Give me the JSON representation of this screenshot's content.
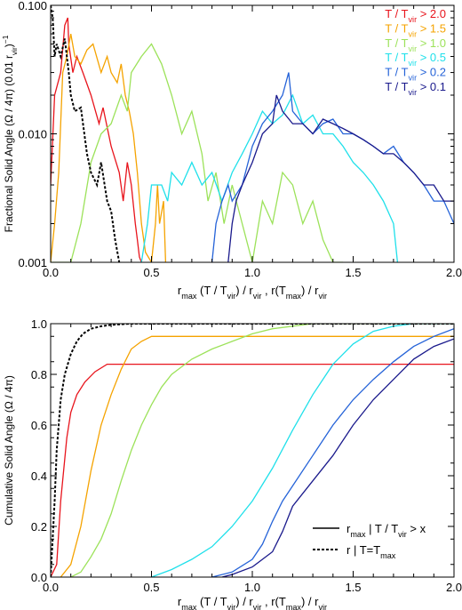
{
  "chart_data": [
    {
      "type": "line",
      "title": "",
      "ylabel_main": "Fractional Solid Angle (Ω / 4π) (0.01 r",
      "ylabel_sub": "vir",
      "ylabel_tail": ")",
      "ylabel_sup": "−1",
      "xlim": [
        0.0,
        2.0
      ],
      "ylim": [
        0.001,
        0.1
      ],
      "yscale": "log",
      "xticks": [
        "0.0",
        "0.5",
        "1.0",
        "1.5",
        "2.0"
      ],
      "yticks": [
        "0.001",
        "0.010",
        "0.100"
      ],
      "xlabel": {
        "a": "r",
        "a_sub": "max",
        "b": "(T / T",
        "b_sub": "vir",
        "c": ") / r",
        "c_sub": "vir",
        "d": ",  r(T",
        "d_sub": "max",
        "e": ") / r",
        "e_sub": "vir"
      },
      "legend_position": "top-right",
      "series": [
        {
          "name": "T / T",
          "sub": "vir",
          "thr": " > 2.0",
          "color": "#e8141c",
          "dash": "",
          "x": [
            0.0,
            0.02,
            0.05,
            0.07,
            0.085,
            0.09,
            0.11,
            0.13,
            0.16,
            0.2,
            0.24,
            0.26,
            0.3,
            0.34,
            0.36,
            0.38,
            0.4,
            0.42,
            0.43,
            0.44,
            0.45
          ],
          "y": [
            0.004,
            0.02,
            0.03,
            0.07,
            0.08,
            0.05,
            0.03,
            0.04,
            0.03,
            0.02,
            0.012,
            0.016,
            0.008,
            0.005,
            0.003,
            0.006,
            0.004,
            0.002,
            0.0015,
            0.0011,
            0.001
          ]
        },
        {
          "name": "T / T",
          "sub": "vir",
          "thr": " > 1.5",
          "color": "#f5a300",
          "dash": "",
          "x": [
            0.0,
            0.02,
            0.04,
            0.06,
            0.08,
            0.1,
            0.12,
            0.15,
            0.18,
            0.21,
            0.25,
            0.28,
            0.3,
            0.33,
            0.35,
            0.37,
            0.39,
            0.41,
            0.43,
            0.45,
            0.47,
            0.5,
            0.52,
            0.53,
            0.54,
            0.56,
            0.57
          ],
          "y": [
            0.001,
            0.002,
            0.005,
            0.03,
            0.04,
            0.06,
            0.04,
            0.035,
            0.045,
            0.05,
            0.03,
            0.04,
            0.03,
            0.025,
            0.035,
            0.02,
            0.015,
            0.01,
            0.005,
            0.002,
            0.0012,
            0.001,
            0.002,
            0.004,
            0.002,
            0.003,
            0.001
          ]
        },
        {
          "name": "T / T",
          "sub": "vir",
          "thr": " > 1.0",
          "color": "#9ce25a",
          "dash": "",
          "x": [
            0.0,
            0.1,
            0.15,
            0.2,
            0.25,
            0.3,
            0.35,
            0.38,
            0.4,
            0.45,
            0.5,
            0.55,
            0.6,
            0.65,
            0.7,
            0.75,
            0.78,
            0.82,
            0.86,
            0.9,
            0.95,
            1.0,
            1.05,
            1.1,
            1.15,
            1.2,
            1.25,
            1.3,
            1.35,
            1.4,
            1.45
          ],
          "y": [
            0.001,
            0.001,
            0.002,
            0.006,
            0.01,
            0.012,
            0.02,
            0.015,
            0.03,
            0.04,
            0.05,
            0.035,
            0.02,
            0.01,
            0.015,
            0.007,
            0.003,
            0.005,
            0.002,
            0.004,
            0.002,
            0.001,
            0.003,
            0.002,
            0.005,
            0.004,
            0.002,
            0.003,
            0.0015,
            0.001,
            0.001
          ]
        },
        {
          "name": "T / T",
          "sub": "vir",
          "thr": " > 0.5",
          "color": "#1fe0ea",
          "dash": "",
          "x": [
            0.45,
            0.48,
            0.5,
            0.55,
            0.58,
            0.6,
            0.65,
            0.7,
            0.75,
            0.8,
            0.85,
            0.9,
            0.95,
            1.0,
            1.05,
            1.1,
            1.15,
            1.2,
            1.25,
            1.3,
            1.35,
            1.4,
            1.45,
            1.5,
            1.55,
            1.6,
            1.65,
            1.7,
            1.72
          ],
          "y": [
            0.001,
            0.002,
            0.004,
            0.004,
            0.003,
            0.005,
            0.004,
            0.006,
            0.004,
            0.005,
            0.003,
            0.005,
            0.007,
            0.01,
            0.015,
            0.012,
            0.014,
            0.02,
            0.012,
            0.014,
            0.01,
            0.01,
            0.008,
            0.006,
            0.005,
            0.004,
            0.003,
            0.002,
            0.001
          ]
        },
        {
          "name": "T / T",
          "sub": "vir",
          "thr": " > 0.2",
          "color": "#2563d8",
          "dash": "",
          "x": [
            0.8,
            0.82,
            0.85,
            0.88,
            0.9,
            0.95,
            1.0,
            1.05,
            1.1,
            1.15,
            1.18,
            1.2,
            1.25,
            1.3,
            1.35,
            1.4,
            1.45,
            1.5,
            1.55,
            1.6,
            1.65,
            1.7,
            1.75,
            1.8,
            1.85,
            1.9,
            1.95,
            2.0
          ],
          "y": [
            0.001,
            0.002,
            0.003,
            0.004,
            0.003,
            0.004,
            0.008,
            0.012,
            0.015,
            0.02,
            0.03,
            0.015,
            0.012,
            0.01,
            0.012,
            0.013,
            0.01,
            0.01,
            0.009,
            0.008,
            0.007,
            0.008,
            0.006,
            0.005,
            0.004,
            0.003,
            0.003,
            0.002
          ]
        },
        {
          "name": "T / T",
          "sub": "vir",
          "thr": " > 0.1",
          "color": "#1a1a8c",
          "dash": "",
          "x": [
            0.88,
            0.9,
            0.92,
            0.95,
            1.0,
            1.05,
            1.1,
            1.12,
            1.15,
            1.2,
            1.25,
            1.3,
            1.35,
            1.4,
            1.45,
            1.5,
            1.55,
            1.6,
            1.65,
            1.7,
            1.75,
            1.8,
            1.85,
            1.9,
            1.95,
            2.0
          ],
          "y": [
            0.001,
            0.002,
            0.003,
            0.004,
            0.006,
            0.01,
            0.012,
            0.02,
            0.015,
            0.012,
            0.012,
            0.01,
            0.013,
            0.012,
            0.011,
            0.01,
            0.009,
            0.008,
            0.007,
            0.007,
            0.006,
            0.005,
            0.004,
            0.004,
            0.003,
            0.003
          ]
        },
        {
          "name": "",
          "sub": "",
          "thr": "",
          "color": "#000000",
          "dash": "3,2",
          "x": [
            0.0,
            0.01,
            0.02,
            0.03,
            0.05,
            0.07,
            0.09,
            0.1,
            0.12,
            0.15,
            0.18,
            0.2,
            0.23,
            0.25,
            0.28,
            0.3,
            0.32,
            0.34
          ],
          "y": [
            0.1,
            0.08,
            0.04,
            0.05,
            0.04,
            0.055,
            0.03,
            0.02,
            0.015,
            0.016,
            0.007,
            0.005,
            0.004,
            0.006,
            0.003,
            0.0025,
            0.0015,
            0.001
          ]
        }
      ]
    },
    {
      "type": "line",
      "title": "",
      "ylabel": "Cumulative Solid Angle (Ω / 4π)",
      "xlim": [
        0.0,
        2.0
      ],
      "ylim": [
        0.0,
        1.0
      ],
      "xticks": [
        "0.0",
        "0.5",
        "1.0",
        "1.5",
        "2.0"
      ],
      "yticks": [
        "0.0",
        "0.2",
        "0.4",
        "0.6",
        "0.8",
        "1.0"
      ],
      "xlabel": {
        "a": "r",
        "a_sub": "max",
        "b": "(T / T",
        "b_sub": "vir",
        "c": ") / r",
        "c_sub": "vir",
        "d": ",  r(T",
        "d_sub": "max",
        "e": ") / r",
        "e_sub": "vir"
      },
      "legend_position": "bottom-right",
      "legend": [
        {
          "pre": "r",
          "sub": "max",
          "post": " | T / T",
          "sub2": "vir",
          "post2": " > x",
          "dash": ""
        },
        {
          "pre": "r | T=T",
          "sub": "max",
          "post": "",
          "sub2": "",
          "post2": "",
          "dash": "3,2"
        }
      ],
      "series": [
        {
          "color": "#e8141c",
          "dash": "",
          "x": [
            0.0,
            0.03,
            0.05,
            0.08,
            0.1,
            0.13,
            0.17,
            0.22,
            0.28,
            0.32,
            2.0
          ],
          "y": [
            0.0,
            0.05,
            0.3,
            0.55,
            0.65,
            0.72,
            0.77,
            0.81,
            0.84,
            0.84,
            0.84
          ]
        },
        {
          "color": "#f5a300",
          "dash": "",
          "x": [
            0.05,
            0.1,
            0.15,
            0.2,
            0.25,
            0.3,
            0.35,
            0.4,
            0.45,
            0.5,
            0.55,
            2.0
          ],
          "y": [
            0.0,
            0.05,
            0.2,
            0.42,
            0.6,
            0.72,
            0.82,
            0.9,
            0.93,
            0.95,
            0.95,
            0.95
          ]
        },
        {
          "color": "#9ce25a",
          "dash": "",
          "x": [
            0.1,
            0.15,
            0.2,
            0.25,
            0.3,
            0.35,
            0.4,
            0.45,
            0.5,
            0.55,
            0.6,
            0.7,
            0.8,
            0.9,
            1.0,
            1.1,
            1.3,
            1.5,
            2.0
          ],
          "y": [
            0.0,
            0.02,
            0.08,
            0.15,
            0.25,
            0.38,
            0.5,
            0.6,
            0.68,
            0.75,
            0.8,
            0.86,
            0.9,
            0.93,
            0.96,
            0.98,
            1.0,
            1.0,
            1.0
          ]
        },
        {
          "color": "#1fe0ea",
          "dash": "",
          "x": [
            0.5,
            0.6,
            0.7,
            0.8,
            0.9,
            1.0,
            1.1,
            1.2,
            1.3,
            1.4,
            1.5,
            1.6,
            1.7,
            1.8,
            2.0
          ],
          "y": [
            0.0,
            0.03,
            0.07,
            0.12,
            0.2,
            0.3,
            0.43,
            0.58,
            0.72,
            0.84,
            0.92,
            0.97,
            0.99,
            1.0,
            1.0
          ]
        },
        {
          "color": "#2563d8",
          "dash": "",
          "x": [
            0.8,
            0.9,
            1.0,
            1.05,
            1.1,
            1.15,
            1.2,
            1.3,
            1.4,
            1.5,
            1.6,
            1.7,
            1.8,
            1.9,
            2.0
          ],
          "y": [
            0.0,
            0.02,
            0.07,
            0.13,
            0.22,
            0.3,
            0.36,
            0.48,
            0.6,
            0.7,
            0.78,
            0.85,
            0.91,
            0.95,
            0.98
          ]
        },
        {
          "color": "#1a1a8c",
          "dash": "",
          "x": [
            0.85,
            0.9,
            1.0,
            1.1,
            1.15,
            1.2,
            1.3,
            1.4,
            1.5,
            1.6,
            1.7,
            1.8,
            1.9,
            2.0
          ],
          "y": [
            0.0,
            0.01,
            0.04,
            0.1,
            0.18,
            0.28,
            0.38,
            0.48,
            0.6,
            0.7,
            0.78,
            0.86,
            0.91,
            0.94
          ]
        },
        {
          "color": "#000000",
          "dash": "3,2",
          "x": [
            0.0,
            0.02,
            0.03,
            0.05,
            0.07,
            0.1,
            0.13,
            0.16,
            0.2,
            0.25,
            0.3,
            0.35,
            0.4,
            0.6,
            1.0,
            2.0
          ],
          "y": [
            0.0,
            0.3,
            0.5,
            0.7,
            0.8,
            0.88,
            0.93,
            0.96,
            0.98,
            0.99,
            0.995,
            0.998,
            1.0,
            1.0,
            1.0,
            1.0
          ]
        }
      ]
    }
  ]
}
